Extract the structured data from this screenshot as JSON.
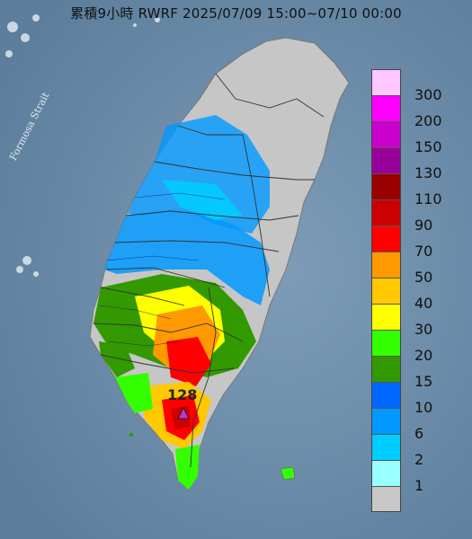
{
  "title": "累積9小時 RWRF 2025/07/09 15:00~07/10 00:00",
  "strait_label": "Formosa Strait",
  "max_label": "128",
  "legend": {
    "items": [
      {
        "label": "300",
        "color": "#ffc6ff"
      },
      {
        "label": "200",
        "color": "#ff00ff"
      },
      {
        "label": "150",
        "color": "#cc00cc"
      },
      {
        "label": "130",
        "color": "#990099"
      },
      {
        "label": "110",
        "color": "#990000"
      },
      {
        "label": "90",
        "color": "#cc0000"
      },
      {
        "label": "70",
        "color": "#ff0000"
      },
      {
        "label": "50",
        "color": "#ff9900"
      },
      {
        "label": "40",
        "color": "#ffc800"
      },
      {
        "label": "30",
        "color": "#ffff00"
      },
      {
        "label": "20",
        "color": "#33ff00"
      },
      {
        "label": "15",
        "color": "#339900"
      },
      {
        "label": "10",
        "color": "#0066ff"
      },
      {
        "label": "6",
        "color": "#0099ff"
      },
      {
        "label": "2",
        "color": "#00ccff"
      },
      {
        "label": "1",
        "color": "#99ffff"
      },
      {
        "label": "",
        "color": "#c8c8c8"
      }
    ]
  },
  "colors": {
    "sea": "#6f8faa",
    "land_dry": "#c8c8c8",
    "max_marker": "#cc33cc"
  }
}
